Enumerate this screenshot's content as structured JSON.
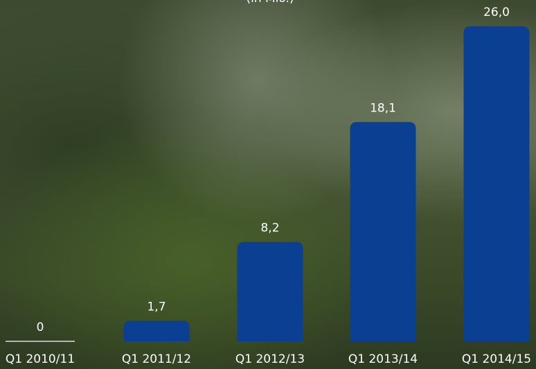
{
  "chart_data": {
    "type": "bar",
    "subtitle": "(in Mio.)",
    "categories": [
      "Q1 2010/11",
      "Q1 2011/12",
      "Q1 2012/13",
      "Q1 2013/14",
      "Q1 2014/15"
    ],
    "values": [
      0,
      1.7,
      8.2,
      18.1,
      26.0
    ],
    "value_labels": [
      "0",
      "1,7",
      "8,2",
      "18,1",
      "26,0"
    ],
    "color": "#0b3f92",
    "ylim": [
      0,
      26
    ]
  }
}
